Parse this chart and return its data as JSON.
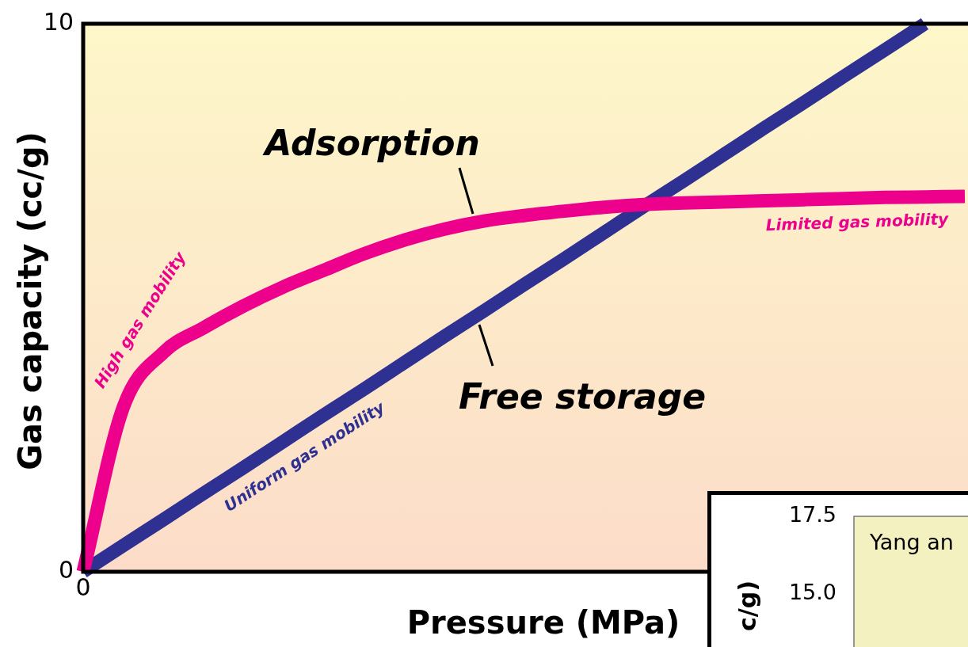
{
  "chart_data": [
    {
      "type": "line",
      "xlabel": "Pressure (MPa)",
      "ylabel": "Gas capacity (cc/g)",
      "categories": [
        "0",
        null,
        null,
        null,
        null,
        null,
        null,
        null,
        null,
        null,
        null,
        null,
        null,
        null,
        null,
        null,
        null,
        null,
        null,
        null,
        null,
        null,
        null
      ],
      "series": [
        {
          "name": "Adsorption",
          "color": "#ec008c",
          "values": [
            0,
            3.0,
            4.0,
            4.45,
            4.85,
            5.2,
            5.5,
            5.8,
            6.05,
            6.25,
            6.4,
            6.5,
            6.58,
            6.65,
            6.7,
            6.73,
            6.75,
            6.77,
            6.79,
            6.81,
            6.83,
            6.84,
            6.85
          ]
        },
        {
          "name": "Free storage",
          "color": "#2e3192",
          "values": [
            0,
            0.48,
            0.95,
            1.43,
            1.9,
            2.38,
            2.86,
            3.33,
            3.81,
            4.29,
            4.76,
            5.24,
            5.71,
            6.19,
            6.67,
            7.14,
            7.62,
            8.1,
            8.57,
            9.05,
            9.52,
            10,
            null
          ]
        }
      ],
      "annotations": [
        "High gas mobility",
        "Uniform gas mobility",
        "Limited gas mobility"
      ],
      "ylim": [
        0,
        10
      ],
      "yticks": [
        0,
        10
      ],
      "grid": false,
      "legend": false,
      "marker": "none",
      "line_style": "solid"
    },
    {
      "type": "line",
      "ylabel": "c/g)",
      "categories": [
        null,
        null
      ],
      "ylim": [
        13.3,
        17.5
      ],
      "yticks": [
        {
          "value": 15,
          "label": "15.0"
        },
        17.5
      ],
      "annotations": [
        "Yang an"
      ],
      "tick_labels": "y",
      "grid": false,
      "legend": false
    }
  ]
}
